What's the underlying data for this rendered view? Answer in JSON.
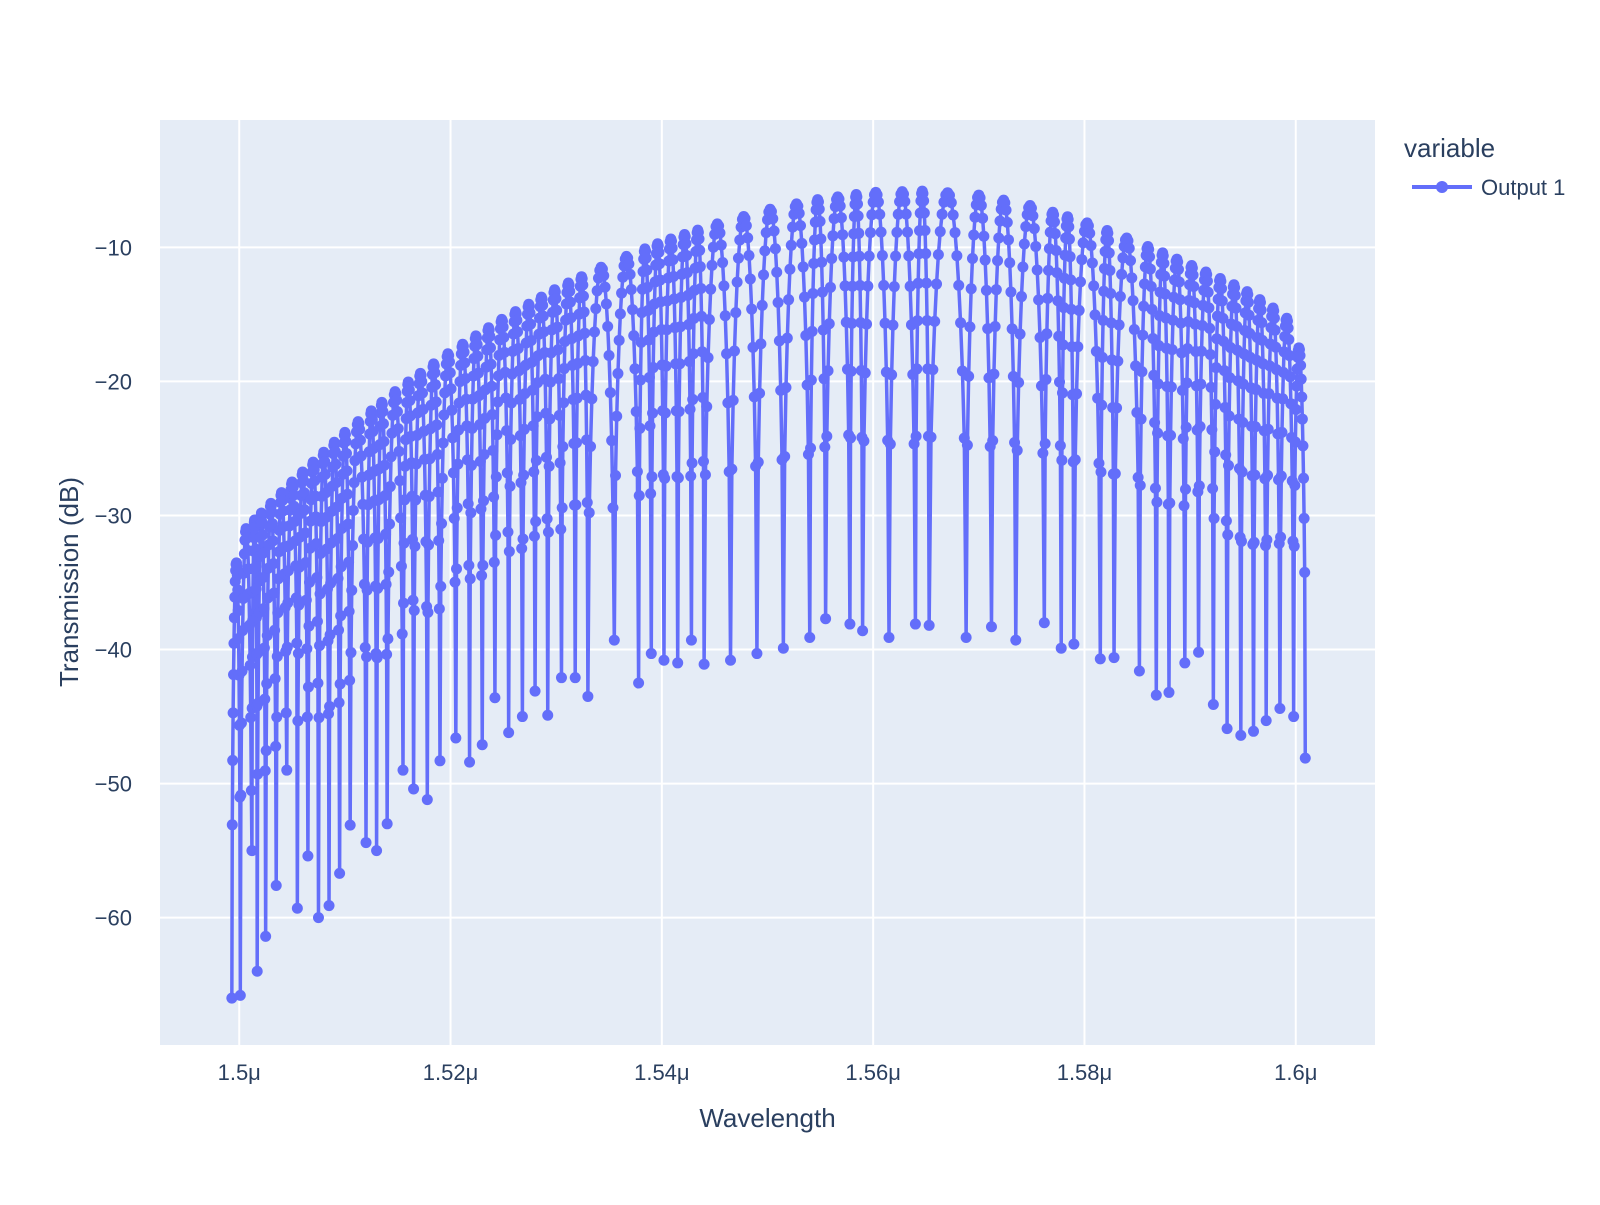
{
  "chart_data": {
    "type": "line",
    "title": "",
    "xlabel": "Wavelength",
    "ylabel": "Transmission (dB)",
    "xlim": [
      1.4925,
      1.6075
    ],
    "ylim": [
      -69.5,
      -0.5
    ],
    "x_ticks": [
      1.5,
      1.52,
      1.54,
      1.56,
      1.58,
      1.6
    ],
    "x_tick_labels": [
      "1.5μ",
      "1.52μ",
      "1.54μ",
      "1.56μ",
      "1.58μ",
      "1.6μ"
    ],
    "y_ticks": [
      -60,
      -50,
      -40,
      -30,
      -20,
      -10
    ],
    "y_tick_labels": [
      "−60",
      "−50",
      "−40",
      "−30",
      "−20",
      "−10"
    ],
    "grid": true,
    "legend": {
      "title": "variable",
      "position": "top-right"
    },
    "colors": {
      "series": "#636efa",
      "plot_bg": "#e5ecf6",
      "grid": "#ffffff",
      "text": "#2a3f5f"
    },
    "series": [
      {
        "name": "Output 1",
        "mode": "lines+markers",
        "x_range": [
          1.4993,
          1.6009
        ],
        "points_per_period": 20,
        "envelope_peak": [
          [
            1.4993,
            -36.5
          ],
          [
            1.5,
            -31.5
          ],
          [
            1.505,
            -27.5
          ],
          [
            1.51,
            -23.8
          ],
          [
            1.515,
            -20.6
          ],
          [
            1.52,
            -17.8
          ],
          [
            1.525,
            -15.3
          ],
          [
            1.53,
            -13.1
          ],
          [
            1.535,
            -11.2
          ],
          [
            1.54,
            -9.6
          ],
          [
            1.545,
            -8.3
          ],
          [
            1.55,
            -7.2
          ],
          [
            1.555,
            -6.4
          ],
          [
            1.56,
            -5.9
          ],
          [
            1.565,
            -5.8
          ],
          [
            1.57,
            -6.1
          ],
          [
            1.575,
            -6.9
          ],
          [
            1.58,
            -8.1
          ],
          [
            1.585,
            -9.6
          ],
          [
            1.59,
            -11.3
          ],
          [
            1.595,
            -13.1
          ],
          [
            1.598,
            -14.6
          ],
          [
            1.6,
            -15.8
          ],
          [
            1.6009,
            -20.5
          ]
        ],
        "dips": [
          [
            1.4993,
            -66.0
          ],
          [
            1.5001,
            -65.8
          ],
          [
            1.5012,
            -55.0
          ],
          [
            1.5017,
            -64.0
          ],
          [
            1.5025,
            -61.4
          ],
          [
            1.5035,
            -57.6
          ],
          [
            1.5045,
            -49.0
          ],
          [
            1.5055,
            -59.3
          ],
          [
            1.5065,
            -55.4
          ],
          [
            1.5075,
            -60.0
          ],
          [
            1.5085,
            -59.1
          ],
          [
            1.5095,
            -56.7
          ],
          [
            1.5105,
            -53.1
          ],
          [
            1.512,
            -54.4
          ],
          [
            1.513,
            -55.0
          ],
          [
            1.514,
            -53.0
          ],
          [
            1.5155,
            -49.0
          ],
          [
            1.5165,
            -50.4
          ],
          [
            1.5178,
            -51.2
          ],
          [
            1.519,
            -48.3
          ],
          [
            1.5205,
            -46.6
          ],
          [
            1.5218,
            -48.4
          ],
          [
            1.523,
            -47.1
          ],
          [
            1.5242,
            -43.6
          ],
          [
            1.5255,
            -46.2
          ],
          [
            1.5268,
            -45.0
          ],
          [
            1.528,
            -43.1
          ],
          [
            1.5292,
            -44.9
          ],
          [
            1.5305,
            -42.1
          ],
          [
            1.5318,
            -42.1
          ],
          [
            1.533,
            -43.5
          ],
          [
            1.5355,
            -39.3
          ],
          [
            1.5378,
            -42.5
          ],
          [
            1.539,
            -40.3
          ],
          [
            1.5402,
            -40.8
          ],
          [
            1.5415,
            -41.0
          ],
          [
            1.5428,
            -39.3
          ],
          [
            1.544,
            -41.1
          ],
          [
            1.5465,
            -40.8
          ],
          [
            1.549,
            -40.3
          ],
          [
            1.5515,
            -39.9
          ],
          [
            1.554,
            -39.1
          ],
          [
            1.5555,
            -37.7
          ],
          [
            1.5578,
            -38.1
          ],
          [
            1.559,
            -38.6
          ],
          [
            1.5615,
            -39.1
          ],
          [
            1.564,
            -38.1
          ],
          [
            1.5653,
            -38.2
          ],
          [
            1.5688,
            -39.1
          ],
          [
            1.5712,
            -38.3
          ],
          [
            1.5735,
            -39.3
          ],
          [
            1.5762,
            -38.0
          ],
          [
            1.5778,
            -39.9
          ],
          [
            1.579,
            -39.6
          ],
          [
            1.5815,
            -40.7
          ],
          [
            1.5828,
            -40.6
          ],
          [
            1.5852,
            -41.6
          ],
          [
            1.5868,
            -43.4
          ],
          [
            1.588,
            -43.2
          ],
          [
            1.5895,
            -41.0
          ],
          [
            1.5908,
            -40.2
          ],
          [
            1.5922,
            -44.1
          ],
          [
            1.5935,
            -45.9
          ],
          [
            1.5948,
            -46.4
          ],
          [
            1.596,
            -46.1
          ],
          [
            1.5972,
            -45.3
          ],
          [
            1.5985,
            -44.4
          ],
          [
            1.5998,
            -45.0
          ],
          [
            1.6009,
            -48.1
          ]
        ]
      }
    ]
  }
}
